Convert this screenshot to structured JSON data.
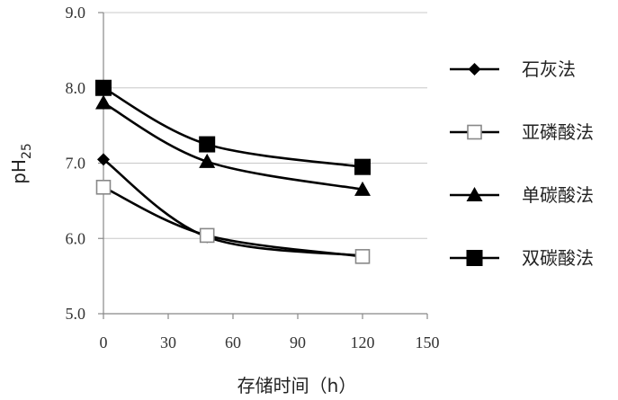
{
  "chart_data": {
    "type": "line",
    "title": "",
    "xlabel": "存储时间（h）",
    "ylabel_base": "pH",
    "ylabel_sub": "25",
    "xlim": [
      0,
      150
    ],
    "ylim": [
      5.0,
      9.0
    ],
    "xticks": [
      0,
      30,
      60,
      90,
      120,
      150
    ],
    "yticks": [
      "5.0",
      "6.0",
      "7.0",
      "8.0",
      "9.0"
    ],
    "grid": "horizontal",
    "legend_position": "right",
    "series": [
      {
        "name": "石灰法",
        "marker": "diamond",
        "x": [
          0,
          48,
          120
        ],
        "y": [
          7.05,
          6.02,
          5.77
        ]
      },
      {
        "name": "亚磷酸法",
        "marker": "square-open",
        "x": [
          0,
          48,
          120
        ],
        "y": [
          6.68,
          6.04,
          5.76
        ]
      },
      {
        "name": "单碳酸法",
        "marker": "triangle",
        "x": [
          0,
          48,
          120
        ],
        "y": [
          7.8,
          7.02,
          6.65
        ]
      },
      {
        "name": "双碳酸法",
        "marker": "square-filled",
        "x": [
          0,
          48,
          120
        ],
        "y": [
          8.0,
          7.25,
          6.95
        ]
      }
    ]
  }
}
